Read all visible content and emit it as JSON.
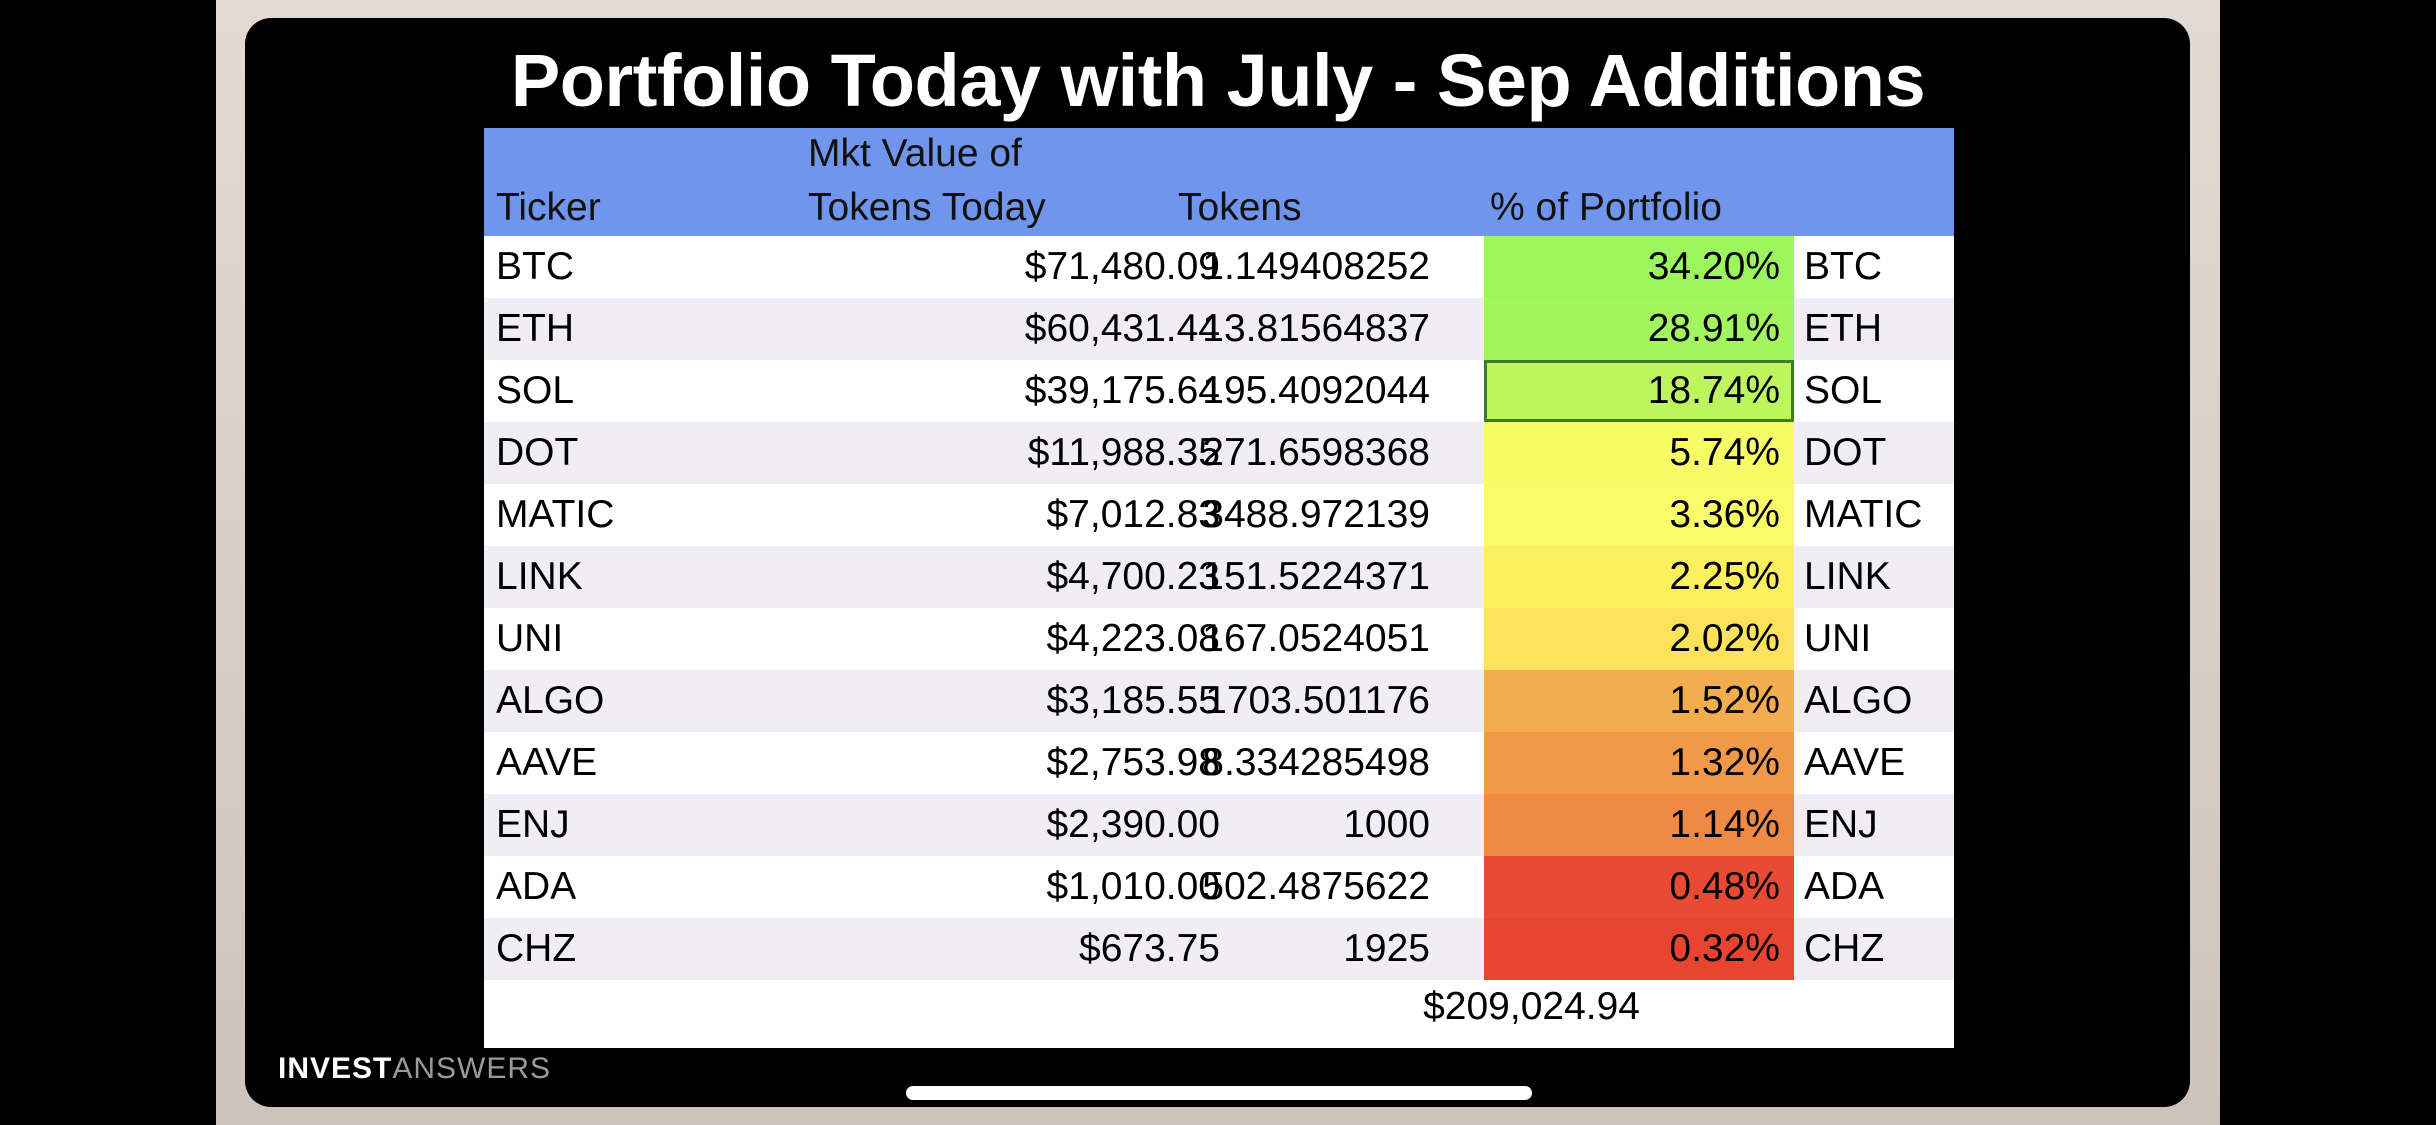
{
  "title": "Portfolio Today with July - Sep Additions",
  "headers": {
    "ticker": "Ticker",
    "mkt_value_line1": "Mkt Value of",
    "mkt_value_line2": "Tokens Today",
    "tokens": "Tokens",
    "percent": "% of Portfolio"
  },
  "rows": [
    {
      "ticker": "BTC",
      "value": "$71,480.09",
      "tokens": "1.149408252",
      "pct": "34.20%",
      "color": "#9cf55c"
    },
    {
      "ticker": "ETH",
      "value": "$60,431.44",
      "tokens": "13.81564837",
      "pct": "28.91%",
      "color": "#a2f55c"
    },
    {
      "ticker": "SOL",
      "value": "$39,175.64",
      "tokens": "195.4092044",
      "pct": "18.74%",
      "color": "#bdf55e"
    },
    {
      "ticker": "DOT",
      "value": "$11,988.35",
      "tokens": "271.6598368",
      "pct": "5.74%",
      "color": "#f6fb66"
    },
    {
      "ticker": "MATIC",
      "value": "$7,012.83",
      "tokens": "3488.972139",
      "pct": "3.36%",
      "color": "#fafb68"
    },
    {
      "ticker": "LINK",
      "value": "$4,700.23",
      "tokens": "151.5224371",
      "pct": "2.25%",
      "color": "#fcef60"
    },
    {
      "ticker": "UNI",
      "value": "$4,223.08",
      "tokens": "167.0524051",
      "pct": "2.02%",
      "color": "#fde35c"
    },
    {
      "ticker": "ALGO",
      "value": "$3,185.55",
      "tokens": "1703.501176",
      "pct": "1.52%",
      "color": "#f2ae4e"
    },
    {
      "ticker": "AAVE",
      "value": "$2,753.98",
      "tokens": "8.334285498",
      "pct": "1.32%",
      "color": "#f09a48"
    },
    {
      "ticker": "ENJ",
      "value": "$2,390.00",
      "tokens": "1000",
      "pct": "1.14%",
      "color": "#ee8a44"
    },
    {
      "ticker": "ADA",
      "value": "$1,010.00",
      "tokens": "502.4875622",
      "pct": "0.48%",
      "color": "#e84a33"
    },
    {
      "ticker": "CHZ",
      "value": "$673.75",
      "tokens": "1925",
      "pct": "0.32%",
      "color": "#e84530"
    }
  ],
  "total": "$209,024.94",
  "brand": {
    "bold": "INVEST",
    "light": "ANSWERS"
  },
  "colors": {
    "header_bg": "#6f96ec",
    "band_alt": "#f0edf6",
    "selected_border": "#3b7d2a"
  }
}
